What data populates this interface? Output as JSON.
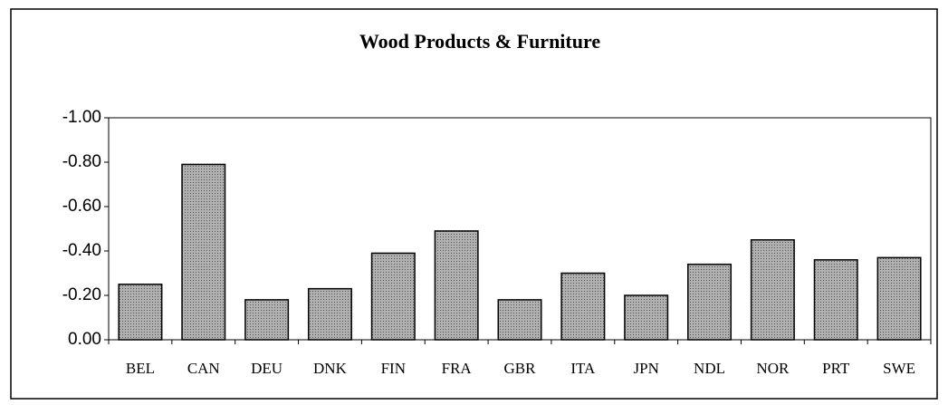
{
  "chart_data": {
    "type": "bar",
    "title": "Wood Products & Furniture",
    "categories": [
      "BEL",
      "CAN",
      "DEU",
      "DNK",
      "FIN",
      "FRA",
      "GBR",
      "ITA",
      "JPN",
      "NDL",
      "NOR",
      "PRT",
      "SWE"
    ],
    "values": [
      -0.25,
      -0.79,
      -0.18,
      -0.23,
      -0.39,
      -0.49,
      -0.18,
      -0.3,
      -0.2,
      -0.34,
      -0.45,
      -0.36,
      -0.37
    ],
    "color": "#9a9a9a",
    "ylim": [
      0,
      -1
    ],
    "yticks": [
      {
        "value": -1,
        "label": "-1.00"
      },
      {
        "value": -0.8,
        "label": "-0.80"
      },
      {
        "value": -0.6,
        "label": "-0.60"
      },
      {
        "value": -0.4,
        "label": "-0.40"
      },
      {
        "value": -0.2,
        "label": "-0.20"
      },
      {
        "value": 0,
        "label": "0.00"
      }
    ]
  }
}
